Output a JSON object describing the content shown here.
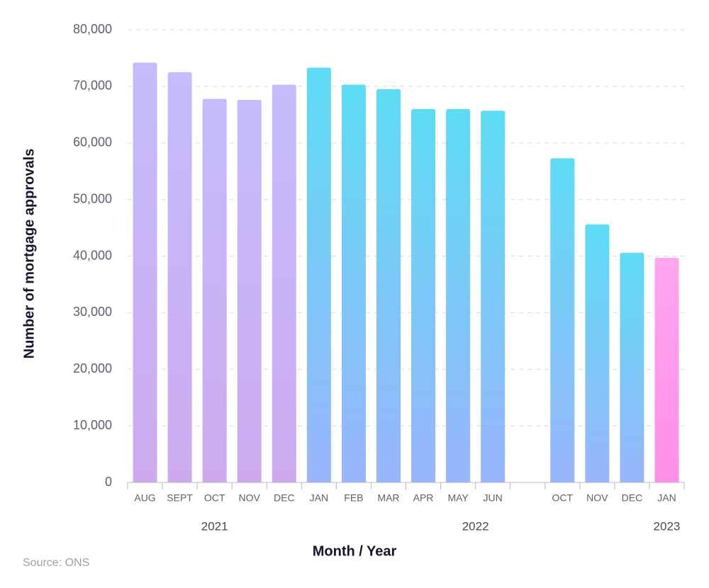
{
  "chart_data": {
    "type": "bar",
    "y_label": "Number of mortgage approvals",
    "x_label": "Month / Year",
    "source": "Source: ONS",
    "categories": [
      "AUG",
      "SEPT",
      "OCT",
      "NOV",
      "DEC",
      "JAN",
      "FEB",
      "MAR",
      "APR",
      "MAY",
      "JUN",
      null,
      "OCT",
      "NOV",
      "DEC",
      "JAN"
    ],
    "values": [
      74200,
      72500,
      67800,
      67600,
      70300,
      73300,
      70300,
      69500,
      66000,
      66000,
      65700,
      null,
      57300,
      45600,
      40600,
      39700
    ],
    "colors": [
      [
        "#c4bcfc",
        "#cdaaee"
      ],
      [
        "#c4bcfc",
        "#cdaaee"
      ],
      [
        "#c4bcfc",
        "#cdaaee"
      ],
      [
        "#c4bcfc",
        "#cdaaee"
      ],
      [
        "#c4bcfc",
        "#cdaaee"
      ],
      [
        "#5ddcf4",
        "#99b5fb"
      ],
      [
        "#5ddcf4",
        "#99b5fb"
      ],
      [
        "#5ddcf4",
        "#99b5fb"
      ],
      [
        "#5ddcf4",
        "#99b5fb"
      ],
      [
        "#5ddcf4",
        "#99b5fb"
      ],
      [
        "#5ddcf4",
        "#99b5fb"
      ],
      null,
      [
        "#5ddcf4",
        "#99b5fb"
      ],
      [
        "#5ddcf4",
        "#99b5fb"
      ],
      [
        "#5ddcf4",
        "#99b5fb"
      ],
      [
        "#ffa6ef",
        "#ff8fe8"
      ]
    ],
    "groups": [
      {
        "label": "2021",
        "span": 5
      },
      {
        "label": "2022",
        "span": 10
      },
      {
        "label": "2023",
        "span": 1
      }
    ],
    "ylim": [
      0,
      80000
    ],
    "yticks": [
      0,
      {
        "value": 10000,
        "label": "10,000"
      },
      {
        "value": 20000,
        "label": "20,000"
      },
      {
        "value": 30000,
        "label": "30,000"
      },
      {
        "value": 40000,
        "label": "40,000"
      },
      {
        "value": 50000,
        "label": "50,000"
      },
      {
        "value": 60000,
        "label": "60,000"
      },
      {
        "value": 70000,
        "label": "70,000"
      },
      {
        "value": 80000,
        "label": "80,000"
      }
    ],
    "grid": true
  }
}
